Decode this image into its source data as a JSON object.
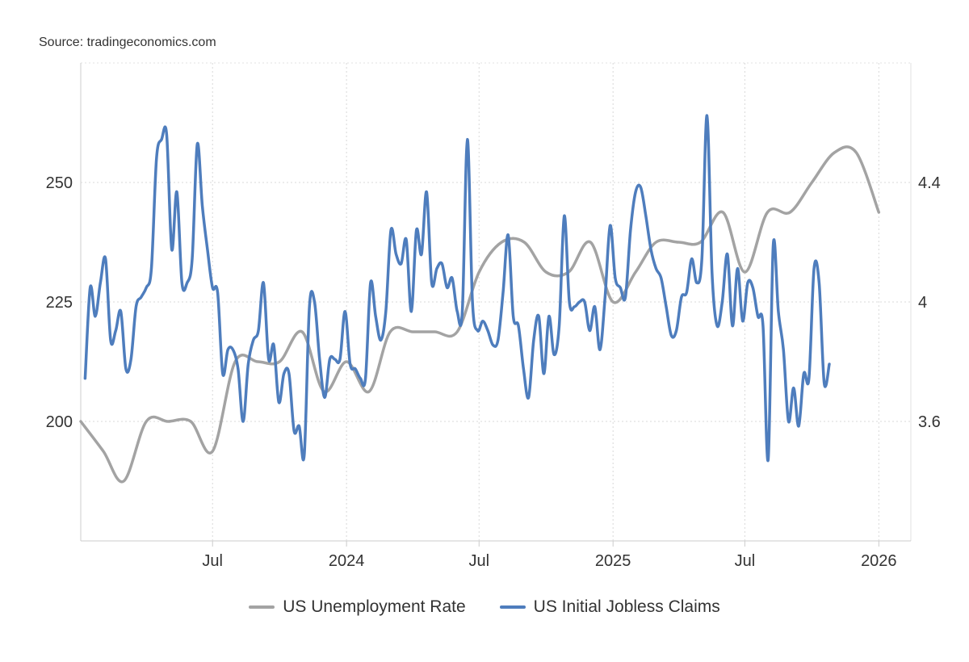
{
  "source": "Source: tradingeconomics.com",
  "chart_data": {
    "type": "line",
    "title": "",
    "xlabel": "",
    "x_ticks": [
      "Jul",
      "2024",
      "Jul",
      "2025",
      "Jul",
      "2026"
    ],
    "x_tick_dates": [
      "2023-07-01",
      "2024-01-01",
      "2024-07-01",
      "2025-01-01",
      "2025-07-01",
      "2026-01-01"
    ],
    "xlim": [
      "2023-01-01",
      "2026-02-14"
    ],
    "y_left": {
      "ylim": [
        175,
        275
      ],
      "ticks": [
        200,
        225,
        250
      ],
      "tick_labels": [
        "200",
        "225",
        "250"
      ]
    },
    "y_right": {
      "ylim": [
        3.2,
        4.8
      ],
      "ticks": [
        3.6,
        4.0,
        4.4
      ],
      "tick_labels": [
        "3.6",
        "4",
        "4.4"
      ]
    },
    "grid": true,
    "legend_position": "bottom",
    "series": [
      {
        "name": "US Unemployment Rate",
        "axis": "right",
        "color": "#a3a3a3",
        "points": [
          [
            "2023-01-01",
            3.6
          ],
          [
            "2023-02-01",
            3.5
          ],
          [
            "2023-03-01",
            3.4
          ],
          [
            "2023-04-01",
            3.6
          ],
          [
            "2023-05-01",
            3.6
          ],
          [
            "2023-06-01",
            3.6
          ],
          [
            "2023-07-01",
            3.5
          ],
          [
            "2023-08-01",
            3.8
          ],
          [
            "2023-09-01",
            3.8
          ],
          [
            "2023-10-01",
            3.8
          ],
          [
            "2023-11-01",
            3.9
          ],
          [
            "2023-12-01",
            3.7
          ],
          [
            "2024-01-01",
            3.8
          ],
          [
            "2024-02-01",
            3.7
          ],
          [
            "2024-03-01",
            3.9
          ],
          [
            "2024-04-01",
            3.9
          ],
          [
            "2024-05-01",
            3.9
          ],
          [
            "2024-06-01",
            3.9
          ],
          [
            "2024-07-01",
            4.1
          ],
          [
            "2024-08-01",
            4.2
          ],
          [
            "2024-09-01",
            4.2
          ],
          [
            "2024-10-01",
            4.1
          ],
          [
            "2024-11-01",
            4.1
          ],
          [
            "2024-12-01",
            4.2
          ],
          [
            "2025-01-01",
            4.0
          ],
          [
            "2025-02-01",
            4.1
          ],
          [
            "2025-03-01",
            4.2
          ],
          [
            "2025-04-01",
            4.2
          ],
          [
            "2025-05-01",
            4.2
          ],
          [
            "2025-06-01",
            4.3
          ],
          [
            "2025-07-01",
            4.1
          ],
          [
            "2025-08-01",
            4.3
          ],
          [
            "2025-09-01",
            4.3
          ],
          [
            "2025-10-01",
            4.4
          ],
          [
            "2025-11-01",
            4.5
          ],
          [
            "2025-12-01",
            4.5
          ],
          [
            "2026-01-01",
            4.3
          ]
        ]
      },
      {
        "name": "US Initial Jobless Claims",
        "axis": "left",
        "color": "#4e7dbd",
        "points": [
          [
            "2023-01-07",
            209
          ],
          [
            "2023-01-14",
            228
          ],
          [
            "2023-01-21",
            222
          ],
          [
            "2023-01-28",
            229
          ],
          [
            "2023-02-04",
            234
          ],
          [
            "2023-02-11",
            217
          ],
          [
            "2023-02-18",
            219
          ],
          [
            "2023-02-25",
            223
          ],
          [
            "2023-03-04",
            211
          ],
          [
            "2023-03-11",
            213
          ],
          [
            "2023-03-18",
            224
          ],
          [
            "2023-03-25",
            226
          ],
          [
            "2023-04-01",
            228
          ],
          [
            "2023-04-08",
            232
          ],
          [
            "2023-04-15",
            255
          ],
          [
            "2023-04-22",
            259
          ],
          [
            "2023-04-29",
            260
          ],
          [
            "2023-05-06",
            236
          ],
          [
            "2023-05-13",
            248
          ],
          [
            "2023-05-20",
            229
          ],
          [
            "2023-05-27",
            229
          ],
          [
            "2023-06-03",
            234
          ],
          [
            "2023-06-10",
            258
          ],
          [
            "2023-06-17",
            245
          ],
          [
            "2023-06-24",
            236
          ],
          [
            "2023-07-01",
            228
          ],
          [
            "2023-07-08",
            227
          ],
          [
            "2023-07-15",
            210
          ],
          [
            "2023-07-22",
            215
          ],
          [
            "2023-07-29",
            215
          ],
          [
            "2023-08-05",
            211
          ],
          [
            "2023-08-12",
            200
          ],
          [
            "2023-08-19",
            212
          ],
          [
            "2023-08-26",
            217
          ],
          [
            "2023-09-02",
            219
          ],
          [
            "2023-09-09",
            229
          ],
          [
            "2023-09-16",
            213
          ],
          [
            "2023-09-23",
            216
          ],
          [
            "2023-09-30",
            204
          ],
          [
            "2023-10-07",
            210
          ],
          [
            "2023-10-14",
            210
          ],
          [
            "2023-10-21",
            198
          ],
          [
            "2023-10-28",
            199
          ],
          [
            "2023-11-04",
            193
          ],
          [
            "2023-11-11",
            224
          ],
          [
            "2023-11-18",
            225
          ],
          [
            "2023-11-25",
            213
          ],
          [
            "2023-12-02",
            205
          ],
          [
            "2023-12-09",
            213
          ],
          [
            "2023-12-16",
            213
          ],
          [
            "2023-12-23",
            213
          ],
          [
            "2023-12-30",
            223
          ],
          [
            "2024-01-06",
            212
          ],
          [
            "2024-01-13",
            211
          ],
          [
            "2024-01-20",
            209
          ],
          [
            "2024-01-27",
            209
          ],
          [
            "2024-02-03",
            229
          ],
          [
            "2024-02-10",
            222
          ],
          [
            "2024-02-17",
            217
          ],
          [
            "2024-02-24",
            223
          ],
          [
            "2024-03-02",
            240
          ],
          [
            "2024-03-09",
            235
          ],
          [
            "2024-03-16",
            233
          ],
          [
            "2024-03-23",
            238
          ],
          [
            "2024-03-30",
            223
          ],
          [
            "2024-04-06",
            240
          ],
          [
            "2024-04-13",
            235
          ],
          [
            "2024-04-20",
            248
          ],
          [
            "2024-04-27",
            229
          ],
          [
            "2024-05-04",
            232
          ],
          [
            "2024-05-11",
            233
          ],
          [
            "2024-05-18",
            228
          ],
          [
            "2024-05-25",
            230
          ],
          [
            "2024-06-01",
            223
          ],
          [
            "2024-06-08",
            223
          ],
          [
            "2024-06-15",
            259
          ],
          [
            "2024-06-22",
            225
          ],
          [
            "2024-06-29",
            219
          ],
          [
            "2024-07-06",
            221
          ],
          [
            "2024-07-13",
            219
          ],
          [
            "2024-07-20",
            216
          ],
          [
            "2024-07-27",
            217
          ],
          [
            "2024-08-03",
            227
          ],
          [
            "2024-08-10",
            239
          ],
          [
            "2024-08-17",
            222
          ],
          [
            "2024-08-24",
            220
          ],
          [
            "2024-08-31",
            211
          ],
          [
            "2024-09-07",
            205
          ],
          [
            "2024-09-14",
            217
          ],
          [
            "2024-09-21",
            222
          ],
          [
            "2024-09-28",
            210
          ],
          [
            "2024-10-05",
            222
          ],
          [
            "2024-10-12",
            214
          ],
          [
            "2024-10-19",
            220
          ],
          [
            "2024-10-26",
            243
          ],
          [
            "2024-11-02",
            225
          ],
          [
            "2024-11-09",
            224
          ],
          [
            "2024-11-16",
            225
          ],
          [
            "2024-11-23",
            225
          ],
          [
            "2024-11-30",
            219
          ],
          [
            "2024-12-07",
            224
          ],
          [
            "2024-12-14",
            215
          ],
          [
            "2024-12-21",
            226
          ],
          [
            "2024-12-28",
            241
          ],
          [
            "2025-01-04",
            230
          ],
          [
            "2025-01-11",
            228
          ],
          [
            "2025-01-18",
            226
          ],
          [
            "2025-01-25",
            240
          ],
          [
            "2025-02-01",
            248
          ],
          [
            "2025-02-08",
            249
          ],
          [
            "2025-02-15",
            243
          ],
          [
            "2025-02-22",
            236
          ],
          [
            "2025-03-01",
            232
          ],
          [
            "2025-03-08",
            230
          ],
          [
            "2025-03-15",
            224
          ],
          [
            "2025-03-22",
            218
          ],
          [
            "2025-03-29",
            219
          ],
          [
            "2025-04-05",
            226
          ],
          [
            "2025-04-12",
            227
          ],
          [
            "2025-04-19",
            234
          ],
          [
            "2025-04-26",
            229
          ],
          [
            "2025-05-03",
            234
          ],
          [
            "2025-05-10",
            264
          ],
          [
            "2025-05-17",
            231
          ],
          [
            "2025-05-24",
            220
          ],
          [
            "2025-05-31",
            225
          ],
          [
            "2025-06-07",
            235
          ],
          [
            "2025-06-14",
            220
          ],
          [
            "2025-06-21",
            232
          ],
          [
            "2025-06-28",
            221
          ],
          [
            "2025-07-05",
            229
          ],
          [
            "2025-07-12",
            228
          ],
          [
            "2025-07-19",
            222
          ],
          [
            "2025-07-26",
            220
          ],
          [
            "2025-08-02",
            192
          ],
          [
            "2025-08-09",
            237
          ],
          [
            "2025-08-16",
            223
          ],
          [
            "2025-08-23",
            215
          ],
          [
            "2025-08-30",
            200
          ],
          [
            "2025-09-06",
            207
          ],
          [
            "2025-09-13",
            199
          ],
          [
            "2025-09-20",
            210
          ],
          [
            "2025-09-27",
            209
          ],
          [
            "2025-10-04",
            232
          ],
          [
            "2025-10-11",
            229
          ],
          [
            "2025-10-18",
            208
          ],
          [
            "2025-10-25",
            212
          ]
        ]
      }
    ]
  }
}
